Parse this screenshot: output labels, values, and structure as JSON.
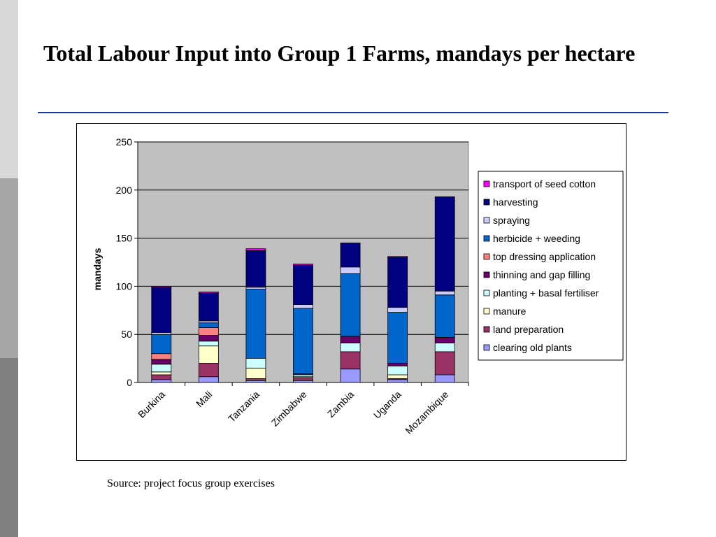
{
  "slide": {
    "title": "Total Labour Input into Group 1 Farms, mandays per hectare",
    "source": "Source: project focus group exercises"
  },
  "chart_data": {
    "type": "bar",
    "stacked": true,
    "categories": [
      "Burkina",
      "Mali",
      "Tanzania",
      "Zimbabwe",
      "Zambia",
      "Uganda",
      "Mozambique"
    ],
    "ylabel": "mandays",
    "xlabel": "",
    "ylim": [
      0,
      250
    ],
    "yticks": [
      0,
      50,
      100,
      150,
      200,
      250
    ],
    "grid": true,
    "legend_position": "right",
    "plot_background": "#c0c0c0",
    "series": [
      {
        "name": "clearing old plants",
        "color": "#9999ff",
        "values": [
          3,
          6,
          2,
          2,
          14,
          3,
          8
        ]
      },
      {
        "name": "land preparation",
        "color": "#993366",
        "values": [
          5,
          14,
          2,
          3,
          18,
          1,
          24
        ]
      },
      {
        "name": "manure",
        "color": "#ffffcc",
        "values": [
          3,
          18,
          11,
          1,
          0,
          4,
          0
        ]
      },
      {
        "name": "planting + basal fertiliser",
        "color": "#ccffff",
        "values": [
          8,
          5,
          10,
          2,
          9,
          9,
          9
        ]
      },
      {
        "name": "thinning and gap filling",
        "color": "#660066",
        "values": [
          5,
          6,
          0,
          1,
          7,
          3,
          6
        ]
      },
      {
        "name": "top dressing application",
        "color": "#ff8080",
        "values": [
          6,
          8,
          0,
          0,
          0,
          0,
          0
        ]
      },
      {
        "name": "herbicide + weeding",
        "color": "#0066cc",
        "values": [
          20,
          5,
          72,
          68,
          65,
          53,
          44
        ]
      },
      {
        "name": "spraying",
        "color": "#ccccff",
        "values": [
          2,
          2,
          2,
          4,
          7,
          5,
          4
        ]
      },
      {
        "name": "harvesting",
        "color": "#000080",
        "values": [
          47,
          29,
          38,
          41,
          25,
          52,
          98
        ]
      },
      {
        "name": "transport of seed cotton",
        "color": "#ff00ff",
        "values": [
          1,
          1,
          2,
          1,
          0,
          1,
          0
        ]
      }
    ]
  }
}
